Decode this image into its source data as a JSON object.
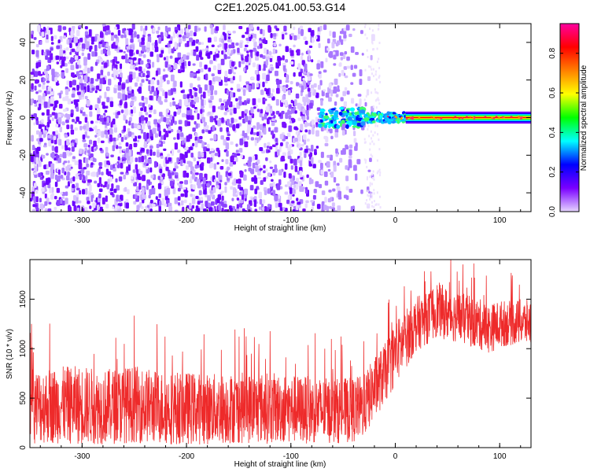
{
  "title": "C2E1.2025.041.00.53.G14",
  "colors": {
    "snr_trace": "#ee2a2a",
    "spectrogram_background": "#6a00ff",
    "colorbar_stops": [
      "#e6d6ff",
      "#7a00ff",
      "#0000ff",
      "#00ffff",
      "#00ff00",
      "#ffff00",
      "#ff8000",
      "#ff0000",
      "#ff00a0"
    ]
  },
  "chart_data": [
    {
      "type": "heatmap",
      "panel": "spectrogram",
      "xlabel": "Height of straight line (km)",
      "ylabel": "Frequency (Hz)",
      "xlim": [
        -350,
        130
      ],
      "ylim": [
        -50,
        50
      ],
      "xticks": [
        -300,
        -200,
        -100,
        0,
        100
      ],
      "xtick_labels": [
        "-300",
        "-200",
        "-100",
        "0",
        "100"
      ],
      "yticks": [
        -40,
        -20,
        0,
        20,
        40
      ],
      "ytick_labels": [
        "-40",
        "-20",
        "0",
        "20",
        "40"
      ],
      "colorbar": {
        "label": "Normalized spectral amplitude",
        "range": [
          0,
          0.95
        ],
        "ticks": [
          0.0,
          0.2,
          0.4,
          0.6,
          0.8
        ],
        "tick_labels": [
          "0.0",
          "0.2",
          "0.4",
          "0.6",
          "0.8"
        ]
      },
      "regions": [
        {
          "x_range": [
            -350,
            -75
          ],
          "freq_range": [
            -50,
            50
          ],
          "amplitude": 0.05,
          "pattern": "diffuse noise"
        },
        {
          "x_range": [
            -75,
            -20
          ],
          "freq_range": [
            -50,
            50
          ],
          "amplitude": 0.02,
          "pattern": "fading noise"
        },
        {
          "x_range": [
            -75,
            10
          ],
          "freq_range": [
            -5,
            5
          ],
          "amplitude": 0.3,
          "pattern": "emerging signal near 0 Hz"
        },
        {
          "x_range": [
            10,
            130
          ],
          "freq_range": [
            -2,
            2
          ],
          "amplitude": 0.9,
          "pattern": "narrow tone at 0 Hz"
        }
      ]
    },
    {
      "type": "line",
      "panel": "snr",
      "xlabel": "Height of straight line (km)",
      "ylabel": "SNR (10 * v/v)",
      "xlim": [
        -350,
        130
      ],
      "ylim": [
        0,
        1900
      ],
      "xticks": [
        -300,
        -200,
        -100,
        0,
        100
      ],
      "xtick_labels": [
        "-300",
        "-200",
        "-100",
        "0",
        "100"
      ],
      "yticks": [
        0,
        500,
        1000,
        1500
      ],
      "ytick_labels": [
        "0",
        "500",
        "1000",
        "1500"
      ],
      "series": [
        {
          "x": [
            -350,
            -320,
            -300,
            -280,
            -250,
            -220,
            -200,
            -180,
            -150,
            -120,
            -100,
            -80,
            -60,
            -40,
            -30,
            -20,
            -10,
            0,
            10,
            20,
            30,
            40,
            50,
            60,
            70,
            80,
            90,
            100,
            110,
            120,
            130
          ],
          "y_center": [
            420,
            430,
            430,
            410,
            440,
            400,
            400,
            390,
            400,
            400,
            390,
            380,
            370,
            380,
            420,
            600,
            750,
            950,
            1100,
            1250,
            1300,
            1400,
            1350,
            1320,
            1280,
            1250,
            1200,
            1250,
            1260,
            1270,
            1260
          ],
          "y_spread": [
            380,
            390,
            400,
            380,
            390,
            370,
            370,
            360,
            360,
            360,
            350,
            340,
            330,
            330,
            320,
            320,
            300,
            330,
            300,
            280,
            260,
            280,
            270,
            260,
            260,
            260,
            250,
            240,
            230,
            230,
            230
          ]
        }
      ]
    }
  ]
}
